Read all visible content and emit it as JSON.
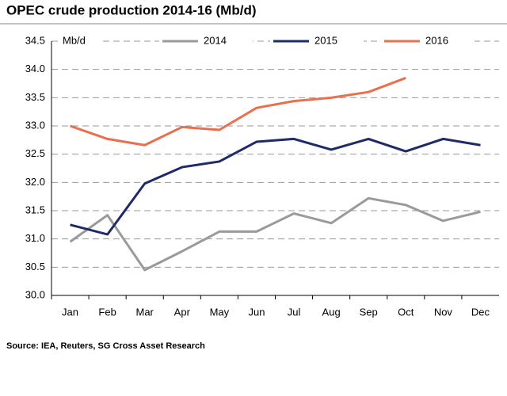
{
  "chart_data": {
    "type": "line",
    "title": "OPEC crude production 2014-16 (Mb/d)",
    "y_label": "Mb/d",
    "source": "Source: IEA, Reuters, SG Cross Asset Research",
    "categories": [
      "Jan",
      "Feb",
      "Mar",
      "Apr",
      "May",
      "Jun",
      "Jul",
      "Aug",
      "Sep",
      "Oct",
      "Nov",
      "Dec"
    ],
    "series": [
      {
        "name": "2014",
        "color": "#9a9a9a",
        "values": [
          30.95,
          31.42,
          30.45,
          30.78,
          31.13,
          31.13,
          31.45,
          31.28,
          31.72,
          31.6,
          31.32,
          31.48
        ]
      },
      {
        "name": "2015",
        "color": "#1f2a6b",
        "values": [
          31.25,
          31.08,
          31.98,
          32.27,
          32.37,
          32.72,
          32.77,
          32.58,
          32.77,
          32.55,
          32.77,
          32.66
        ]
      },
      {
        "name": "2016",
        "color": "#e8704e",
        "values": [
          33.0,
          32.77,
          32.66,
          32.98,
          32.93,
          33.32,
          33.44,
          33.5,
          33.6,
          33.85,
          null,
          null
        ]
      }
    ],
    "ylim": [
      30,
      34.5
    ],
    "yticks": [
      {
        "value": 30,
        "label": "30.0"
      },
      30.5,
      {
        "value": 31,
        "label": "31.0"
      },
      31.5,
      {
        "value": 32,
        "label": "32.0"
      },
      32.5,
      {
        "value": 33,
        "label": "33.0"
      },
      33.5,
      {
        "value": 34,
        "label": "34.0"
      },
      34.5
    ],
    "grid": true
  }
}
